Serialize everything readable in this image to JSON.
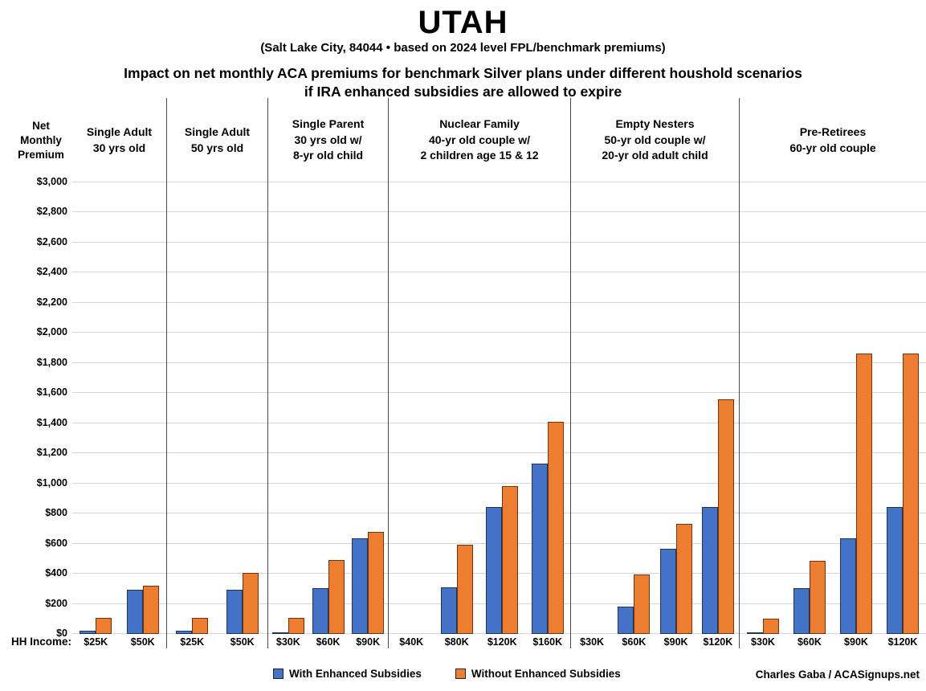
{
  "header": {
    "title": "UTAH",
    "subtitle": "(Salt Lake City, 84044 • based on 2024 level FPL/benchmark premiums)",
    "heading_line1": "Impact on net monthly ACA premiums for benchmark Silver plans under different houshold scenarios",
    "heading_line2": "if IRA enhanced subsidies are allowed to expire"
  },
  "axis": {
    "y_title_lines": [
      "Net",
      "Monthly",
      "Premium"
    ],
    "x_label": "HH Income:",
    "y_ticks": [
      "$3,000",
      "$2,800",
      "$2,600",
      "$2,400",
      "$2,200",
      "$2,000",
      "$1,800",
      "$1,600",
      "$1,400",
      "$1,200",
      "$1,000",
      "$800",
      "$600",
      "$400",
      "$200",
      "$0"
    ]
  },
  "legend": [
    {
      "label": "With Enhanced Subsidies",
      "color": "#4472C4"
    },
    {
      "label": "Without Enhanced Subsidies",
      "color": "#ED7D31"
    }
  ],
  "credit": "Charles Gaba / ACASignups.net",
  "chart_data": {
    "type": "bar",
    "title": "UTAH",
    "subtitle": "(Salt Lake City, 84044 • based on 2024 level FPL/benchmark premiums)",
    "ylabel": "Net Monthly Premium",
    "xlabel": "HH Income:",
    "ylim": [
      0,
      3000
    ],
    "y_tick_step": 200,
    "grid": true,
    "legend_position": "bottom",
    "series_names": [
      "With Enhanced Subsidies",
      "Without Enhanced Subsidies"
    ],
    "colors": {
      "with_fill": "#4472C4",
      "with_border": "#1F3457",
      "without_fill": "#ED7D31",
      "without_border": "#6B3410"
    },
    "groups": [
      {
        "label": "Single Adult\n30 yrs old",
        "incomes": [
          "$25K",
          "$50K"
        ],
        "with": [
          20,
          295
        ],
        "without": [
          105,
          320
        ]
      },
      {
        "label": "Single Adult\n50 yrs old",
        "incomes": [
          "$25K",
          "$50K"
        ],
        "with": [
          20,
          295
        ],
        "without": [
          105,
          405
        ]
      },
      {
        "label": "Single Parent\n30 yrs old w/\n8-yr old child",
        "incomes": [
          "$30K",
          "$60K",
          "$90K"
        ],
        "with": [
          5,
          305,
          635
        ],
        "without": [
          105,
          490,
          680
        ]
      },
      {
        "label": "Nuclear Family\n40-yr old couple w/\n2 children age 15 & 12",
        "incomes": [
          "$40K",
          "$80K",
          "$120K",
          "$160K"
        ],
        "with": [
          0,
          310,
          845,
          1130
        ],
        "without": [
          0,
          590,
          980,
          1410
        ]
      },
      {
        "label": "Empty Nesters\n50-yr old couple w/\n20-yr old adult child",
        "incomes": [
          "$30K",
          "$60K",
          "$90K",
          "$120K"
        ],
        "with": [
          0,
          180,
          565,
          845
        ],
        "without": [
          0,
          395,
          730,
          1560
        ]
      },
      {
        "label": "Pre-Retirees\n60-yr old couple",
        "incomes": [
          "$30K",
          "$60K",
          "$90K",
          "$120K"
        ],
        "with": [
          5,
          305,
          635,
          845
        ],
        "without": [
          100,
          485,
          1865,
          1865
        ]
      }
    ]
  }
}
